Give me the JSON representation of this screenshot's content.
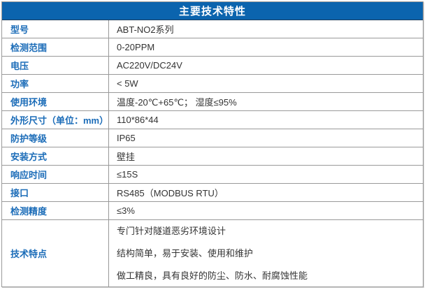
{
  "header": {
    "title": "主要技术特性"
  },
  "colors": {
    "header_bg": "#0b64ae",
    "header_text": "#ffffff",
    "label_text": "#1b6cb8",
    "value_text": "#333333",
    "border": "#999999"
  },
  "rows": [
    {
      "label": "型号",
      "value": "ABT-NO2系列"
    },
    {
      "label": "检测范围",
      "value": "0-20PPM"
    },
    {
      "label": "电压",
      "value": "AC220V/DC24V"
    },
    {
      "label": "功率",
      "value": "< 5W"
    },
    {
      "label": "使用环境",
      "value": "温度-20℃+65℃； 湿度≤95%"
    },
    {
      "label": "外形尺寸（单位：mm）",
      "value": "110*86*44"
    },
    {
      "label": "防护等级",
      "value": "IP65"
    },
    {
      "label": "安装方式",
      "value": "壁挂"
    },
    {
      "label": "响应时间",
      "value": "≤15S"
    },
    {
      "label": "接口",
      "value": "RS485（MODBUS RTU）"
    },
    {
      "label": "检测精度",
      "value": "≤3%"
    }
  ],
  "features": {
    "label": "技术特点",
    "lines": [
      "专门针对隧道恶劣环境设计",
      "结构简单，易于安装、使用和维护",
      "做工精良，具有良好的防尘、防水、耐腐蚀性能"
    ]
  }
}
